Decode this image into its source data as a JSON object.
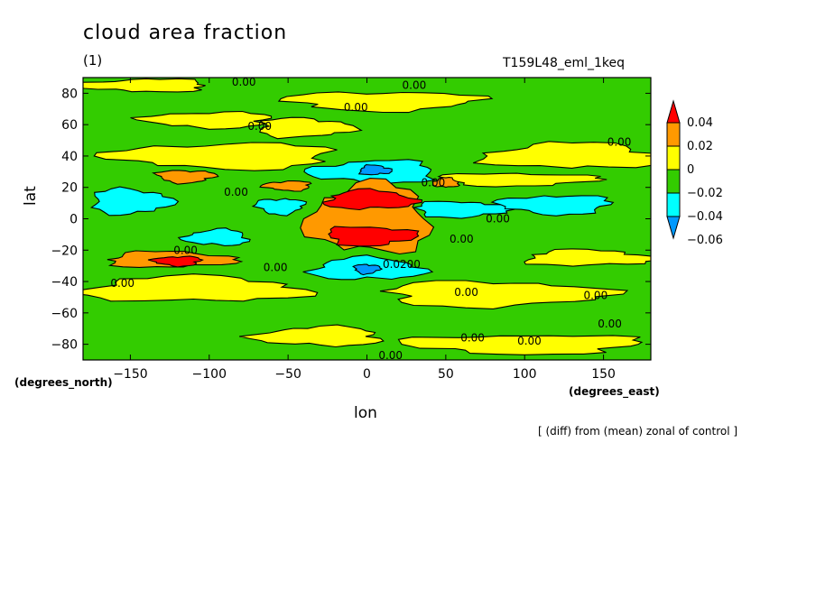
{
  "title": "cloud area fraction",
  "subtitle": "(1)",
  "run_label": "T159L48_eml_1keq",
  "footnote": "[ (diff) from (mean) zonal of control ]",
  "chart_data": {
    "type": "heatmap",
    "xlabel": "lon",
    "ylabel": "lat",
    "xunits": "(degrees_east)",
    "yunits": "(degrees_north)",
    "xlim": [
      -180,
      180
    ],
    "ylim": [
      -90,
      90
    ],
    "xticks": [
      -150,
      -100,
      -50,
      0,
      50,
      100,
      150
    ],
    "yticks": [
      80,
      60,
      40,
      20,
      0,
      -20,
      -40,
      -60,
      -80
    ],
    "colorbar": {
      "levels": [
        0.04,
        0.02,
        0,
        -0.02,
        -0.04,
        -0.06
      ],
      "labels": [
        "0.04",
        "0.02",
        "0",
        "−0.02",
        "−0.04",
        "−0.06"
      ],
      "colors": [
        "#ff0000",
        "#ff9900",
        "#ffff00",
        "#33cc00",
        "#00ffff",
        "#0099ff"
      ],
      "extend": "both"
    },
    "background_color": "#33cc00",
    "features": [
      {
        "value": 0.05,
        "color": "#ff0000",
        "lon": 2,
        "lat": 12,
        "dlon": 28,
        "dlat": 6
      },
      {
        "value": 0.05,
        "color": "#ff0000",
        "lon": 2,
        "lat": -11,
        "dlon": 28,
        "dlat": 6
      },
      {
        "value": 0.05,
        "color": "#ff0000",
        "lon": -120,
        "lat": -27,
        "dlon": 15,
        "dlat": 3
      },
      {
        "value": 0.03,
        "color": "#ff9900",
        "lon": 2,
        "lat": 0,
        "dlon": 38,
        "dlat": 22
      },
      {
        "value": 0.03,
        "color": "#ff9900",
        "lon": -125,
        "lat": -26,
        "dlon": 40,
        "dlat": 5
      },
      {
        "value": 0.03,
        "color": "#ff9900",
        "lon": -115,
        "lat": 27,
        "dlon": 18,
        "dlat": 4
      },
      {
        "value": 0.03,
        "color": "#ff9900",
        "lon": -50,
        "lat": 21,
        "dlon": 15,
        "dlat": 3
      },
      {
        "value": 0.03,
        "color": "#ff9900",
        "lon": 50,
        "lat": 23,
        "dlon": 8,
        "dlat": 3
      },
      {
        "value": -0.03,
        "color": "#00ffff",
        "lon": -150,
        "lat": 11,
        "dlon": 25,
        "dlat": 8
      },
      {
        "value": -0.03,
        "color": "#00ffff",
        "lon": -55,
        "lat": 8,
        "dlon": 15,
        "dlat": 5
      },
      {
        "value": -0.03,
        "color": "#00ffff",
        "lon": 5,
        "lat": 30,
        "dlon": 40,
        "dlat": 7
      },
      {
        "value": -0.03,
        "color": "#00ffff",
        "lon": 0,
        "lat": -32,
        "dlon": 35,
        "dlat": 7
      },
      {
        "value": -0.03,
        "color": "#00ffff",
        "lon": 60,
        "lat": 6,
        "dlon": 30,
        "dlat": 5
      },
      {
        "value": -0.03,
        "color": "#00ffff",
        "lon": 120,
        "lat": 9,
        "dlon": 35,
        "dlat": 6
      },
      {
        "value": -0.03,
        "color": "#00ffff",
        "lon": -95,
        "lat": -12,
        "dlon": 20,
        "dlat": 5
      },
      {
        "value": -0.05,
        "color": "#0099ff",
        "lon": 5,
        "lat": 31,
        "dlon": 10,
        "dlat": 3
      },
      {
        "value": -0.05,
        "color": "#0099ff",
        "lon": 0,
        "lat": -32,
        "dlon": 8,
        "dlat": 3
      },
      {
        "value": 0.01,
        "color": "#ffff00",
        "lon": -90,
        "lat": 40,
        "dlon": 70,
        "dlat": 8
      },
      {
        "value": 0.01,
        "color": "#ffff00",
        "lon": 130,
        "lat": 40,
        "dlon": 55,
        "dlat": 8
      },
      {
        "value": 0.01,
        "color": "#ffff00",
        "lon": -40,
        "lat": 58,
        "dlon": 30,
        "dlat": 6
      },
      {
        "value": 0.01,
        "color": "#ffff00",
        "lon": 10,
        "lat": 75,
        "dlon": 60,
        "dlat": 6
      },
      {
        "value": 0.01,
        "color": "#ffff00",
        "lon": -140,
        "lat": 85,
        "dlon": 40,
        "dlat": 4
      },
      {
        "value": 0.01,
        "color": "#ffff00",
        "lon": -110,
        "lat": -45,
        "dlon": 70,
        "dlat": 8
      },
      {
        "value": 0.01,
        "color": "#ffff00",
        "lon": 80,
        "lat": -48,
        "dlon": 70,
        "dlat": 8
      },
      {
        "value": 0.01,
        "color": "#ffff00",
        "lon": 100,
        "lat": -80,
        "dlon": 75,
        "dlat": 6
      },
      {
        "value": 0.01,
        "color": "#ffff00",
        "lon": -30,
        "lat": -75,
        "dlon": 40,
        "dlat": 6
      },
      {
        "value": 0.01,
        "color": "#ffff00",
        "lon": 140,
        "lat": -25,
        "dlon": 40,
        "dlat": 5
      },
      {
        "value": 0.01,
        "color": "#ffff00",
        "lon": 95,
        "lat": 25,
        "dlon": 50,
        "dlat": 4
      },
      {
        "value": 0.01,
        "color": "#ffff00",
        "lon": -100,
        "lat": 63,
        "dlon": 40,
        "dlat": 5
      }
    ],
    "contour_labels": [
      {
        "text": "0.00",
        "lon": -78,
        "lat": 87
      },
      {
        "text": "0.00",
        "lon": 30,
        "lat": 85
      },
      {
        "text": "0.00",
        "lon": -7,
        "lat": 71
      },
      {
        "text": "0.00",
        "lon": -68,
        "lat": 59
      },
      {
        "text": "0.00",
        "lon": 160,
        "lat": 49
      },
      {
        "text": "0.00",
        "lon": -83,
        "lat": 17
      },
      {
        "text": "0.00",
        "lon": 42,
        "lat": 23
      },
      {
        "text": "0.00",
        "lon": 83,
        "lat": 0
      },
      {
        "text": "0.00",
        "lon": 60,
        "lat": -13
      },
      {
        "text": "0.00",
        "lon": -115,
        "lat": -20
      },
      {
        "text": "0.00",
        "lon": -58,
        "lat": -31
      },
      {
        "text": "0.0200",
        "lon": 22,
        "lat": -29
      },
      {
        "text": "0.00",
        "lon": -155,
        "lat": -41
      },
      {
        "text": "0.00",
        "lon": 63,
        "lat": -47
      },
      {
        "text": "0.00",
        "lon": 145,
        "lat": -49
      },
      {
        "text": "0.00",
        "lon": 154,
        "lat": -67
      },
      {
        "text": "0.00",
        "lon": 67,
        "lat": -76
      },
      {
        "text": "0.00",
        "lon": 103,
        "lat": -78
      },
      {
        "text": "0.00",
        "lon": 15,
        "lat": -87
      }
    ]
  }
}
